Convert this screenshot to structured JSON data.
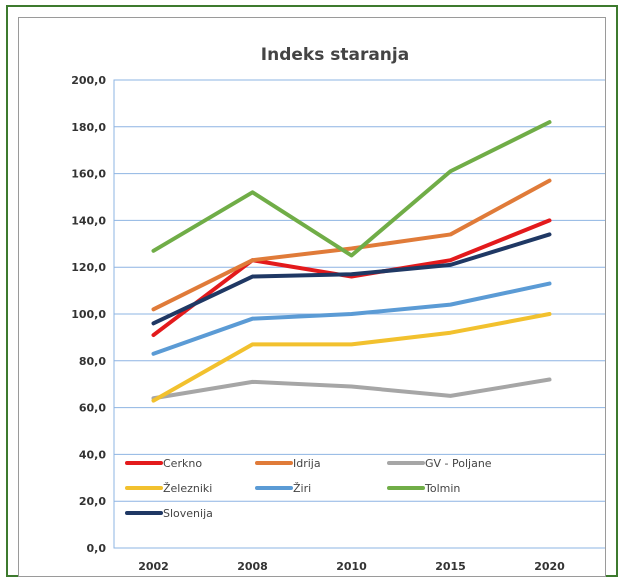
{
  "chart_data": {
    "type": "line",
    "title": "Indeks staranja",
    "xlabel": "",
    "ylabel": "",
    "categories": [
      "2002",
      "2008",
      "2010",
      "2015",
      "2020"
    ],
    "ylim": [
      0,
      200
    ],
    "yticks": [
      "0,0",
      "20,0",
      "40,0",
      "60,0",
      "80,0",
      "100,0",
      "120,0",
      "140,0",
      "160,0",
      "180,0",
      "200,0"
    ],
    "grid": true,
    "legend_position": "inside-bottom-left",
    "series": [
      {
        "name": "Cerkno",
        "color": "#e31a1c",
        "values": [
          91,
          123,
          116,
          123,
          140
        ]
      },
      {
        "name": "Idrija",
        "color": "#e07b39",
        "values": [
          102,
          123,
          128,
          134,
          157
        ]
      },
      {
        "name": "GV - Poljane",
        "color": "#a6a6a6",
        "values": [
          64,
          71,
          69,
          65,
          72
        ]
      },
      {
        "name": "Železniki",
        "color": "#f2c12e",
        "values": [
          63,
          87,
          87,
          92,
          100
        ]
      },
      {
        "name": "Žiri",
        "color": "#5b9bd5",
        "values": [
          83,
          98,
          100,
          104,
          113
        ]
      },
      {
        "name": "Tolmin",
        "color": "#70ad47",
        "values": [
          127,
          152,
          125,
          161,
          182
        ]
      },
      {
        "name": "Slovenija",
        "color": "#1f3864",
        "values": [
          96,
          116,
          117,
          121,
          134
        ]
      }
    ]
  }
}
